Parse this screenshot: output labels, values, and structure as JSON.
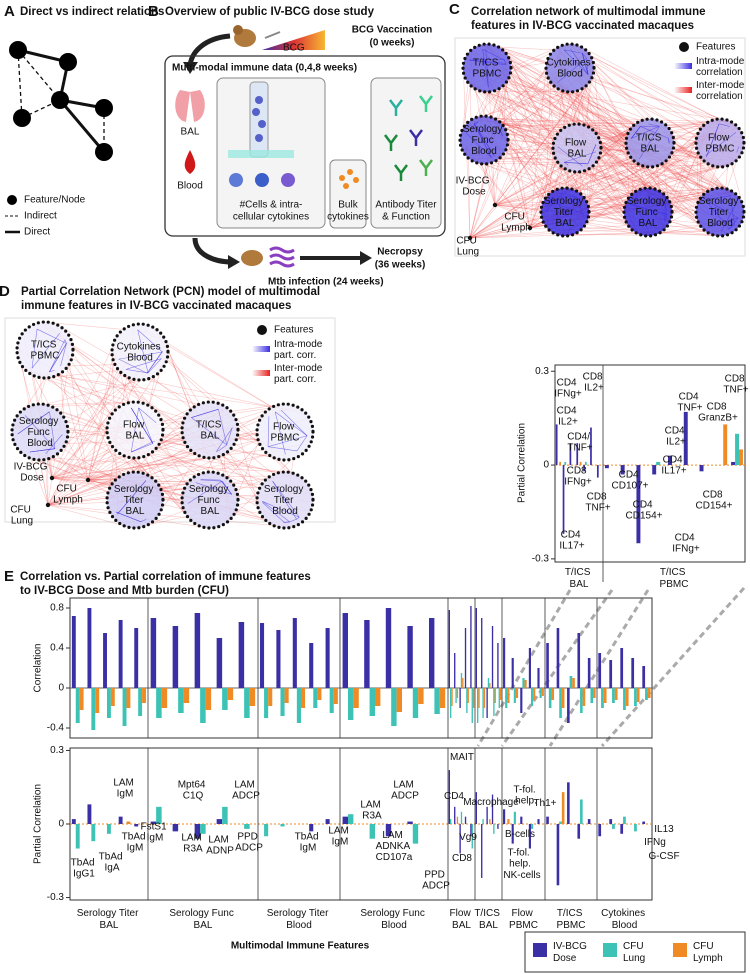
{
  "panel_A": {
    "letter": "A",
    "title": "Direct vs indirect relations",
    "legend": [
      "Feature/Node",
      "Indirect",
      "Direct"
    ]
  },
  "panel_B": {
    "letter": "B",
    "title": "Overview of public IV-BCG dose study",
    "bcg": "BCG",
    "vaccination": "BCG Vaccination",
    "vaccination_time": "(0 weeks)",
    "box_title": "Multi-modal immune data (0,4,8 weeks)",
    "bal": "BAL",
    "blood": "Blood",
    "cells": [
      "#Cells & intra-",
      "cellular cytokines"
    ],
    "bulk": [
      "Bulk",
      "cytokines"
    ],
    "antibody": [
      "Antibody Titer",
      "& Function"
    ],
    "infection": "Mtb infection (24 weeks)",
    "necropsy": "Necropsy",
    "necropsy_time": "(36 weeks)"
  },
  "panel_C": {
    "letter": "C",
    "title": [
      "Correlation network of multimodal immune",
      "features in IV-BCG vaccinated macaques"
    ],
    "legend": [
      "Features",
      "Intra-mode correlation",
      "Inter-mode correlation"
    ],
    "nodes": [
      "T/ICS PBMC",
      "Cytokines Blood",
      "Serology Func Blood",
      "Flow BAL",
      "T/ICS BAL",
      "Flow PBMC",
      "Serology Titer BAL",
      "Serology Func BAL",
      "Serology Titer Blood"
    ],
    "outcomes": [
      "IV-BCG Dose",
      "CFU Lymph",
      "CFU Lung"
    ]
  },
  "panel_D": {
    "letter": "D",
    "title": [
      "Partial Correlation Network (PCN) model of multimodal",
      "immune features in IV-BCG vaccinated macaques"
    ],
    "legend": [
      "Features",
      "Intra-mode part. corr.",
      "Inter-mode part. corr."
    ],
    "nodes": [
      "T/ICS PBMC",
      "Cytokines Blood",
      "Serology Func Blood",
      "Flow BAL",
      "T/ICS BAL",
      "Flow PBMC",
      "Serology Titer BAL",
      "Serology Func BAL",
      "Serology Titer Blood"
    ],
    "outcomes": [
      "IV-BCG Dose",
      "CFU Lymph",
      "CFU Lung"
    ],
    "chart_data": {
      "type": "bar",
      "y_label": "Partial Correlation",
      "ylim": [
        -0.31,
        0.32
      ],
      "yticks": [
        -0.3,
        0,
        0.3
      ],
      "colors": [
        "#3b2fa6",
        "#3cc3b5",
        "#f08a24"
      ],
      "groups": [
        {
          "label": "T/ICS BAL",
          "categories": [
            "CD4 IFNg+",
            "CD4 IL17+",
            "CD4 IL2+",
            "CD4/ TNF+",
            "CD8 IFNg+",
            "CD8 IL2+",
            "CD8 TNF+"
          ],
          "values": [
            [
              0.13,
              -0.22,
              0.07,
              0.07,
              -0.02,
              0.12,
              -0.04
            ],
            [
              0,
              0.01,
              0,
              0,
              0.01,
              0,
              0
            ],
            [
              0.01,
              0,
              0,
              0.01,
              0,
              0,
              0
            ]
          ]
        },
        {
          "label": "T/ICS PBMC",
          "categories": [
            "CD4 CD107+",
            "CD4 CD154+",
            "CD4 IFNg+",
            "CD4 IL17+",
            "CD4 IL2+",
            "CD4 TNF+",
            "CD8 CD154+",
            "CD8 GranzB+",
            "CD8 TNF+"
          ],
          "values": [
            [
              -0.01,
              -0.03,
              -0.25,
              -0.03,
              0.03,
              0.17,
              -0.02,
              0,
              0.01
            ],
            [
              0,
              0,
              0,
              0.01,
              0,
              0,
              0,
              0,
              0.1
            ],
            [
              0,
              0,
              0,
              0,
              0,
              0,
              0,
              0.13,
              0.05
            ]
          ]
        }
      ]
    }
  },
  "panel_E": {
    "letter": "E",
    "title": [
      "Correlation vs. Partial correlation of immune features",
      "to IV-BCG Dose and Mtb burden (CFU)"
    ],
    "x_label": "Multimodal Immune Features",
    "series": [
      {
        "name": "IV-BCG Dose",
        "color": "#3b2fa6"
      },
      {
        "name": "CFU Lung",
        "color": "#3cc3b5"
      },
      {
        "name": "CFU Lymph",
        "color": "#f08a24"
      }
    ],
    "correlation": {
      "type": "bar",
      "y_label": "Correlation",
      "ylim": [
        -0.5,
        0.9
      ],
      "yticks": [
        -0.4,
        0,
        0.4,
        0.8
      ],
      "groups": [
        {
          "label": "Serology Titer BAL",
          "values": [
            [
              0.72,
              0.8,
              0.55,
              0.68,
              0.6
            ],
            [
              -0.35,
              -0.42,
              -0.3,
              -0.38,
              -0.28
            ],
            [
              -0.22,
              -0.25,
              -0.18,
              -0.2,
              -0.15
            ]
          ]
        },
        {
          "label": "Serology Func BAL",
          "values": [
            [
              0.7,
              0.62,
              0.75,
              0.5,
              0.66
            ],
            [
              -0.3,
              -0.25,
              -0.35,
              -0.22,
              -0.3
            ],
            [
              -0.2,
              -0.15,
              -0.22,
              -0.12,
              -0.18
            ]
          ]
        },
        {
          "label": "Serology Titer Blood",
          "values": [
            [
              0.65,
              0.58,
              0.7,
              0.45,
              0.6
            ],
            [
              -0.3,
              -0.28,
              -0.35,
              -0.2,
              -0.25
            ],
            [
              -0.18,
              -0.15,
              -0.2,
              -0.12,
              -0.16
            ]
          ]
        },
        {
          "label": "Serology Func Blood",
          "values": [
            [
              0.75,
              0.68,
              0.8,
              0.62,
              0.7
            ],
            [
              -0.32,
              -0.28,
              -0.38,
              -0.3,
              -0.26
            ],
            [
              -0.2,
              -0.18,
              -0.24,
              -0.16,
              -0.2
            ]
          ]
        },
        {
          "label": "Flow BAL",
          "values": [
            [
              0.78,
              0.35,
              -0.2,
              0.6,
              0.82
            ],
            [
              -0.3,
              -0.15,
              0.15,
              -0.25,
              -0.35
            ],
            [
              -0.18,
              -0.1,
              0.1,
              -0.15,
              -0.2
            ]
          ]
        },
        {
          "label": "T/ICS BAL",
          "values": [
            [
              0.8,
              0.7,
              -0.3,
              0.62,
              0.45
            ],
            [
              -0.35,
              -0.3,
              0.1,
              -0.28,
              -0.2
            ],
            [
              -0.2,
              -0.2,
              0.05,
              -0.15,
              -0.12
            ]
          ]
        },
        {
          "label": "Flow PBMC",
          "values": [
            [
              0.5,
              0.3,
              -0.25,
              0.4,
              0.2
            ],
            [
              -0.2,
              -0.15,
              0.1,
              -0.18,
              -0.1
            ],
            [
              -0.15,
              -0.1,
              0.08,
              -0.12,
              -0.08
            ]
          ]
        },
        {
          "label": "T/ICS PBMC",
          "values": [
            [
              0.45,
              0.6,
              -0.35,
              0.55,
              0.3
            ],
            [
              -0.2,
              -0.3,
              0.12,
              -0.25,
              -0.15
            ],
            [
              -0.12,
              -0.2,
              0.1,
              -0.18,
              -0.1
            ]
          ]
        },
        {
          "label": "Cytokines Blood",
          "values": [
            [
              0.35,
              0.28,
              0.4,
              0.3,
              0.22
            ],
            [
              -0.2,
              -0.15,
              -0.22,
              -0.18,
              -0.12
            ],
            [
              -0.15,
              -0.12,
              -0.18,
              -0.14,
              -0.1
            ]
          ]
        }
      ]
    },
    "partial_correlation": {
      "type": "bar",
      "y_label": "Partial Correlation",
      "ylim": [
        -0.31,
        0.31
      ],
      "yticks": [
        -0.3,
        0,
        0.3
      ],
      "groups": [
        {
          "label": "Serology Titer BAL",
          "values": [
            [
              0.02,
              0.08,
              0,
              0.03,
              -0.01
            ],
            [
              -0.1,
              -0.07,
              -0.04,
              0,
              0
            ],
            [
              0,
              0,
              0,
              0.01,
              0
            ]
          ]
        },
        {
          "label": "Serology Func BAL",
          "values": [
            [
              0.01,
              -0.03,
              -0.06,
              0.02,
              0
            ],
            [
              0.07,
              0,
              -0.04,
              0.07,
              -0.02
            ],
            [
              0,
              0,
              0,
              0,
              0
            ]
          ]
        },
        {
          "label": "Serology Titer Blood",
          "values": [
            [
              0,
              0,
              0,
              -0.03,
              0.02
            ],
            [
              -0.05,
              -0.01,
              0,
              0,
              0
            ],
            [
              0,
              0,
              0,
              0,
              0
            ]
          ]
        },
        {
          "label": "Serology Func Blood",
          "values": [
            [
              0.03,
              0,
              -0.05,
              0.01,
              0
            ],
            [
              0.04,
              -0.06,
              0,
              -0.08,
              0
            ],
            [
              0,
              0,
              0,
              0,
              0
            ]
          ]
        },
        {
          "label": "Flow BAL",
          "values": [
            [
              0.22,
              0.07,
              -0.12,
              0.03,
              -0.05
            ],
            [
              0.02,
              0,
              0.05,
              0,
              -0.1
            ],
            [
              0,
              0.03,
              0,
              0,
              0
            ]
          ]
        },
        {
          "label": "T/ICS BAL",
          "values": [
            [
              0.13,
              -0.22,
              0.07,
              0.12,
              -0.02
            ],
            [
              0,
              0.02,
              0,
              -0.04,
              0
            ],
            [
              0,
              0,
              0.02,
              0,
              0
            ]
          ]
        },
        {
          "label": "Flow PBMC",
          "values": [
            [
              0.06,
              -0.08,
              0.03,
              -0.1,
              0.02
            ],
            [
              0,
              0.05,
              0,
              -0.02,
              0
            ],
            [
              0.02,
              0,
              0,
              0,
              0
            ]
          ]
        },
        {
          "label": "T/ICS PBMC",
          "values": [
            [
              0.03,
              -0.25,
              0.17,
              -0.06,
              0.02
            ],
            [
              0,
              0.01,
              0,
              0.1,
              0
            ],
            [
              0,
              0.13,
              0,
              0,
              0
            ]
          ]
        },
        {
          "label": "Cytokines Blood",
          "values": [
            [
              -0.05,
              0.02,
              -0.04,
              0,
              0.01
            ],
            [
              0,
              -0.02,
              0.03,
              -0.03,
              0
            ],
            [
              0,
              0,
              0,
              0,
              0
            ]
          ]
        }
      ],
      "annotations": [
        {
          "text": "TbAd IgG1",
          "color": "#3cc3b5"
        },
        {
          "text": "TbAd IgA",
          "color": "#3cc3b5"
        },
        {
          "text": "TbAd IgM",
          "color": "#3cc3b5"
        },
        {
          "text": "LAM IgM",
          "color": "#3b2fa6"
        },
        {
          "text": "FstS1 IgM",
          "color": "#3b2fa6"
        },
        {
          "text": "Mpt64 C1Q",
          "color": "#3cc3b5"
        },
        {
          "text": "LAM R3A",
          "color": "#3b2fa6"
        },
        {
          "text": "LAM ADNP",
          "color": "#3b2fa6"
        },
        {
          "text": "LAM ADCP",
          "color": "#3cc3b5"
        },
        {
          "text": "PPD ADCP",
          "color": "#3cc3b5"
        },
        {
          "text": "TbAd IgM",
          "color": "#3cc3b5"
        },
        {
          "text": "LAM IgM",
          "color": "#3b2fa6"
        },
        {
          "text": "LAM R3A",
          "color": "#3b2fa6"
        },
        {
          "text": "LAM ADCP",
          "color": "#3cc3b5"
        },
        {
          "text": "LAM ADNKA CD107a",
          "color": "#3b2fa6"
        },
        {
          "text": "PPD ADCP",
          "color": "#3cc3b5"
        },
        {
          "text": "MAIT",
          "color": "#3b2fa6"
        },
        {
          "text": "CD4",
          "color": "#3b2fa6"
        },
        {
          "text": "Vg9",
          "color": "#3b2fa6"
        },
        {
          "text": "CD8",
          "color": "#3b2fa6"
        },
        {
          "text": "Macrophage",
          "color": "#f08a24"
        },
        {
          "text": "T-fol. help.",
          "color": "#3b2fa6"
        },
        {
          "text": "Th1+",
          "color": "#3b2fa6"
        },
        {
          "text": "B-cells",
          "color": "#3b2fa6"
        },
        {
          "text": "T-fol. help.",
          "color": "#3b2fa6"
        },
        {
          "text": "NK-cells",
          "color": "#3b2fa6"
        },
        {
          "text": "IL13",
          "color": "#3cc3b5"
        },
        {
          "text": "IFNg",
          "color": "#3b2fa6"
        },
        {
          "text": "G-CSF",
          "color": "#3cc3b5"
        }
      ]
    }
  }
}
